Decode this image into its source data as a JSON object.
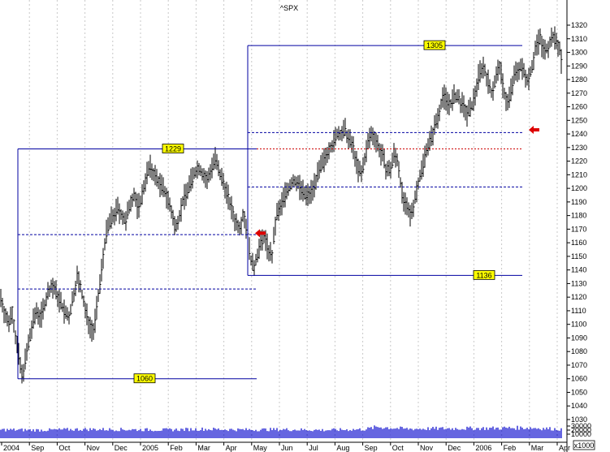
{
  "chart_data": {
    "type": "ohlc-bar",
    "symbol": "^SPX",
    "price_axis": {
      "min": 1030,
      "max": 1320,
      "step": 10,
      "labels": [
        "1030",
        "1040",
        "1050",
        "1060",
        "1070",
        "1080",
        "1090",
        "1100",
        "1110",
        "1120",
        "1130",
        "1140",
        "1150",
        "1160",
        "1170",
        "1180",
        "1190",
        "1200",
        "1210",
        "1220",
        "1230",
        "1240",
        "1250",
        "1260",
        "1270",
        "1280",
        "1290",
        "1300",
        "1310",
        "1320"
      ]
    },
    "volume_axis": {
      "labels": [
        "10000",
        "20000",
        "30000"
      ],
      "unit": "x1000",
      "max": 33000
    },
    "months": [
      "2004",
      "Sep",
      "Oct",
      "Nov",
      "Dec",
      "2005",
      "Feb",
      "Mar",
      "Apr",
      "May",
      "Jun",
      "Jul",
      "Aug",
      "Sep",
      "Oct",
      "Nov",
      "Dec",
      "2006",
      "Feb",
      "Mar",
      "Apr"
    ],
    "price_path": [
      [
        0,
        1122
      ],
      [
        5,
        1110
      ],
      [
        10,
        1100
      ],
      [
        15,
        1110
      ],
      [
        18,
        1095
      ],
      [
        22,
        1080
      ],
      [
        27,
        1062
      ],
      [
        30,
        1070
      ],
      [
        35,
        1085
      ],
      [
        40,
        1100
      ],
      [
        45,
        1110
      ],
      [
        50,
        1105
      ],
      [
        55,
        1115
      ],
      [
        60,
        1125
      ],
      [
        65,
        1128
      ],
      [
        70,
        1122
      ],
      [
        75,
        1115
      ],
      [
        80,
        1108
      ],
      [
        85,
        1105
      ],
      [
        90,
        1120
      ],
      [
        95,
        1135
      ],
      [
        100,
        1125
      ],
      [
        105,
        1110
      ],
      [
        110,
        1100
      ],
      [
        115,
        1095
      ],
      [
        120,
        1115
      ],
      [
        125,
        1140
      ],
      [
        130,
        1165
      ],
      [
        135,
        1175
      ],
      [
        140,
        1180
      ],
      [
        145,
        1185
      ],
      [
        150,
        1180
      ],
      [
        155,
        1175
      ],
      [
        160,
        1190
      ],
      [
        165,
        1195
      ],
      [
        170,
        1185
      ],
      [
        175,
        1195
      ],
      [
        180,
        1210
      ],
      [
        185,
        1215
      ],
      [
        190,
        1210
      ],
      [
        195,
        1205
      ],
      [
        200,
        1200
      ],
      [
        205,
        1195
      ],
      [
        210,
        1185
      ],
      [
        215,
        1172
      ],
      [
        220,
        1178
      ],
      [
        225,
        1190
      ],
      [
        230,
        1198
      ],
      [
        235,
        1205
      ],
      [
        240,
        1212
      ],
      [
        245,
        1215
      ],
      [
        250,
        1210
      ],
      [
        255,
        1205
      ],
      [
        260,
        1215
      ],
      [
        265,
        1222
      ],
      [
        270,
        1210
      ],
      [
        275,
        1205
      ],
      [
        280,
        1195
      ],
      [
        285,
        1185
      ],
      [
        290,
        1175
      ],
      [
        295,
        1172
      ],
      [
        300,
        1182
      ],
      [
        305,
        1165
      ],
      [
        308,
        1150
      ],
      [
        312,
        1140
      ],
      [
        315,
        1148
      ],
      [
        320,
        1158
      ],
      [
        325,
        1165
      ],
      [
        330,
        1155
      ],
      [
        335,
        1150
      ],
      [
        340,
        1180
      ],
      [
        345,
        1185
      ],
      [
        350,
        1195
      ],
      [
        355,
        1200
      ],
      [
        360,
        1205
      ],
      [
        365,
        1205
      ],
      [
        370,
        1200
      ],
      [
        375,
        1195
      ],
      [
        380,
        1195
      ],
      [
        385,
        1200
      ],
      [
        390,
        1208
      ],
      [
        395,
        1215
      ],
      [
        400,
        1222
      ],
      [
        405,
        1230
      ],
      [
        410,
        1232
      ],
      [
        415,
        1240
      ],
      [
        420,
        1240
      ],
      [
        425,
        1242
      ],
      [
        430,
        1235
      ],
      [
        435,
        1230
      ],
      [
        440,
        1215
      ],
      [
        445,
        1210
      ],
      [
        450,
        1225
      ],
      [
        455,
        1238
      ],
      [
        460,
        1240
      ],
      [
        465,
        1232
      ],
      [
        470,
        1225
      ],
      [
        475,
        1215
      ],
      [
        480,
        1212
      ],
      [
        485,
        1225
      ],
      [
        490,
        1220
      ],
      [
        495,
        1195
      ],
      [
        500,
        1185
      ],
      [
        505,
        1180
      ],
      [
        510,
        1190
      ],
      [
        515,
        1205
      ],
      [
        520,
        1215
      ],
      [
        525,
        1230
      ],
      [
        530,
        1235
      ],
      [
        535,
        1245
      ],
      [
        540,
        1255
      ],
      [
        545,
        1268
      ],
      [
        550,
        1265
      ],
      [
        555,
        1262
      ],
      [
        560,
        1268
      ],
      [
        565,
        1265
      ],
      [
        570,
        1260
      ],
      [
        575,
        1255
      ],
      [
        580,
        1258
      ],
      [
        585,
        1270
      ],
      [
        590,
        1285
      ],
      [
        595,
        1290
      ],
      [
        600,
        1280
      ],
      [
        605,
        1270
      ],
      [
        610,
        1280
      ],
      [
        615,
        1290
      ],
      [
        620,
        1272
      ],
      [
        625,
        1262
      ],
      [
        630,
        1275
      ],
      [
        635,
        1285
      ],
      [
        640,
        1290
      ],
      [
        645,
        1285
      ],
      [
        650,
        1280
      ],
      [
        655,
        1290
      ],
      [
        660,
        1305
      ],
      [
        665,
        1310
      ],
      [
        670,
        1300
      ],
      [
        675,
        1305
      ],
      [
        680,
        1312
      ],
      [
        685,
        1308
      ],
      [
        690,
        1300
      ],
      [
        692,
        1288
      ]
    ],
    "volume_path": [
      [
        0,
        21000
      ],
      [
        50,
        20000
      ],
      [
        100,
        22000
      ],
      [
        150,
        21500
      ],
      [
        200,
        20500
      ],
      [
        250,
        22500
      ],
      [
        300,
        21000
      ],
      [
        350,
        21500
      ],
      [
        400,
        20000
      ],
      [
        450,
        22000
      ],
      [
        465,
        28000
      ],
      [
        500,
        23000
      ],
      [
        550,
        24000
      ],
      [
        600,
        24500
      ],
      [
        650,
        26000
      ],
      [
        692,
        22000
      ]
    ],
    "level_lines": [
      {
        "label": "1060",
        "value": 1060,
        "style": "solid"
      },
      {
        "label": "1229",
        "value": 1229,
        "style": "solid"
      },
      {
        "label": "1136",
        "value": 1136,
        "style": "solid"
      },
      {
        "label": "1305",
        "value": 1305,
        "style": "solid"
      },
      {
        "value": 1166,
        "style": "dashed"
      },
      {
        "value": 1126,
        "style": "dashed"
      },
      {
        "value": 1241,
        "style": "dashed"
      },
      {
        "value": 1201,
        "style": "dashed"
      },
      {
        "value": 1229,
        "style": "dotted-red"
      }
    ],
    "markers": [
      {
        "type": "left-arrow",
        "value": 1167
      },
      {
        "type": "left-arrow",
        "value": 1243
      }
    ],
    "grid": "vertical-dotted",
    "colors": {
      "price_bars": "#000000",
      "volume_bars": "#0000cc",
      "level_lines": "#0000a0",
      "label_fill": "#ffff00",
      "marker": "#dd0000",
      "mid_line": "#cc0000"
    }
  }
}
